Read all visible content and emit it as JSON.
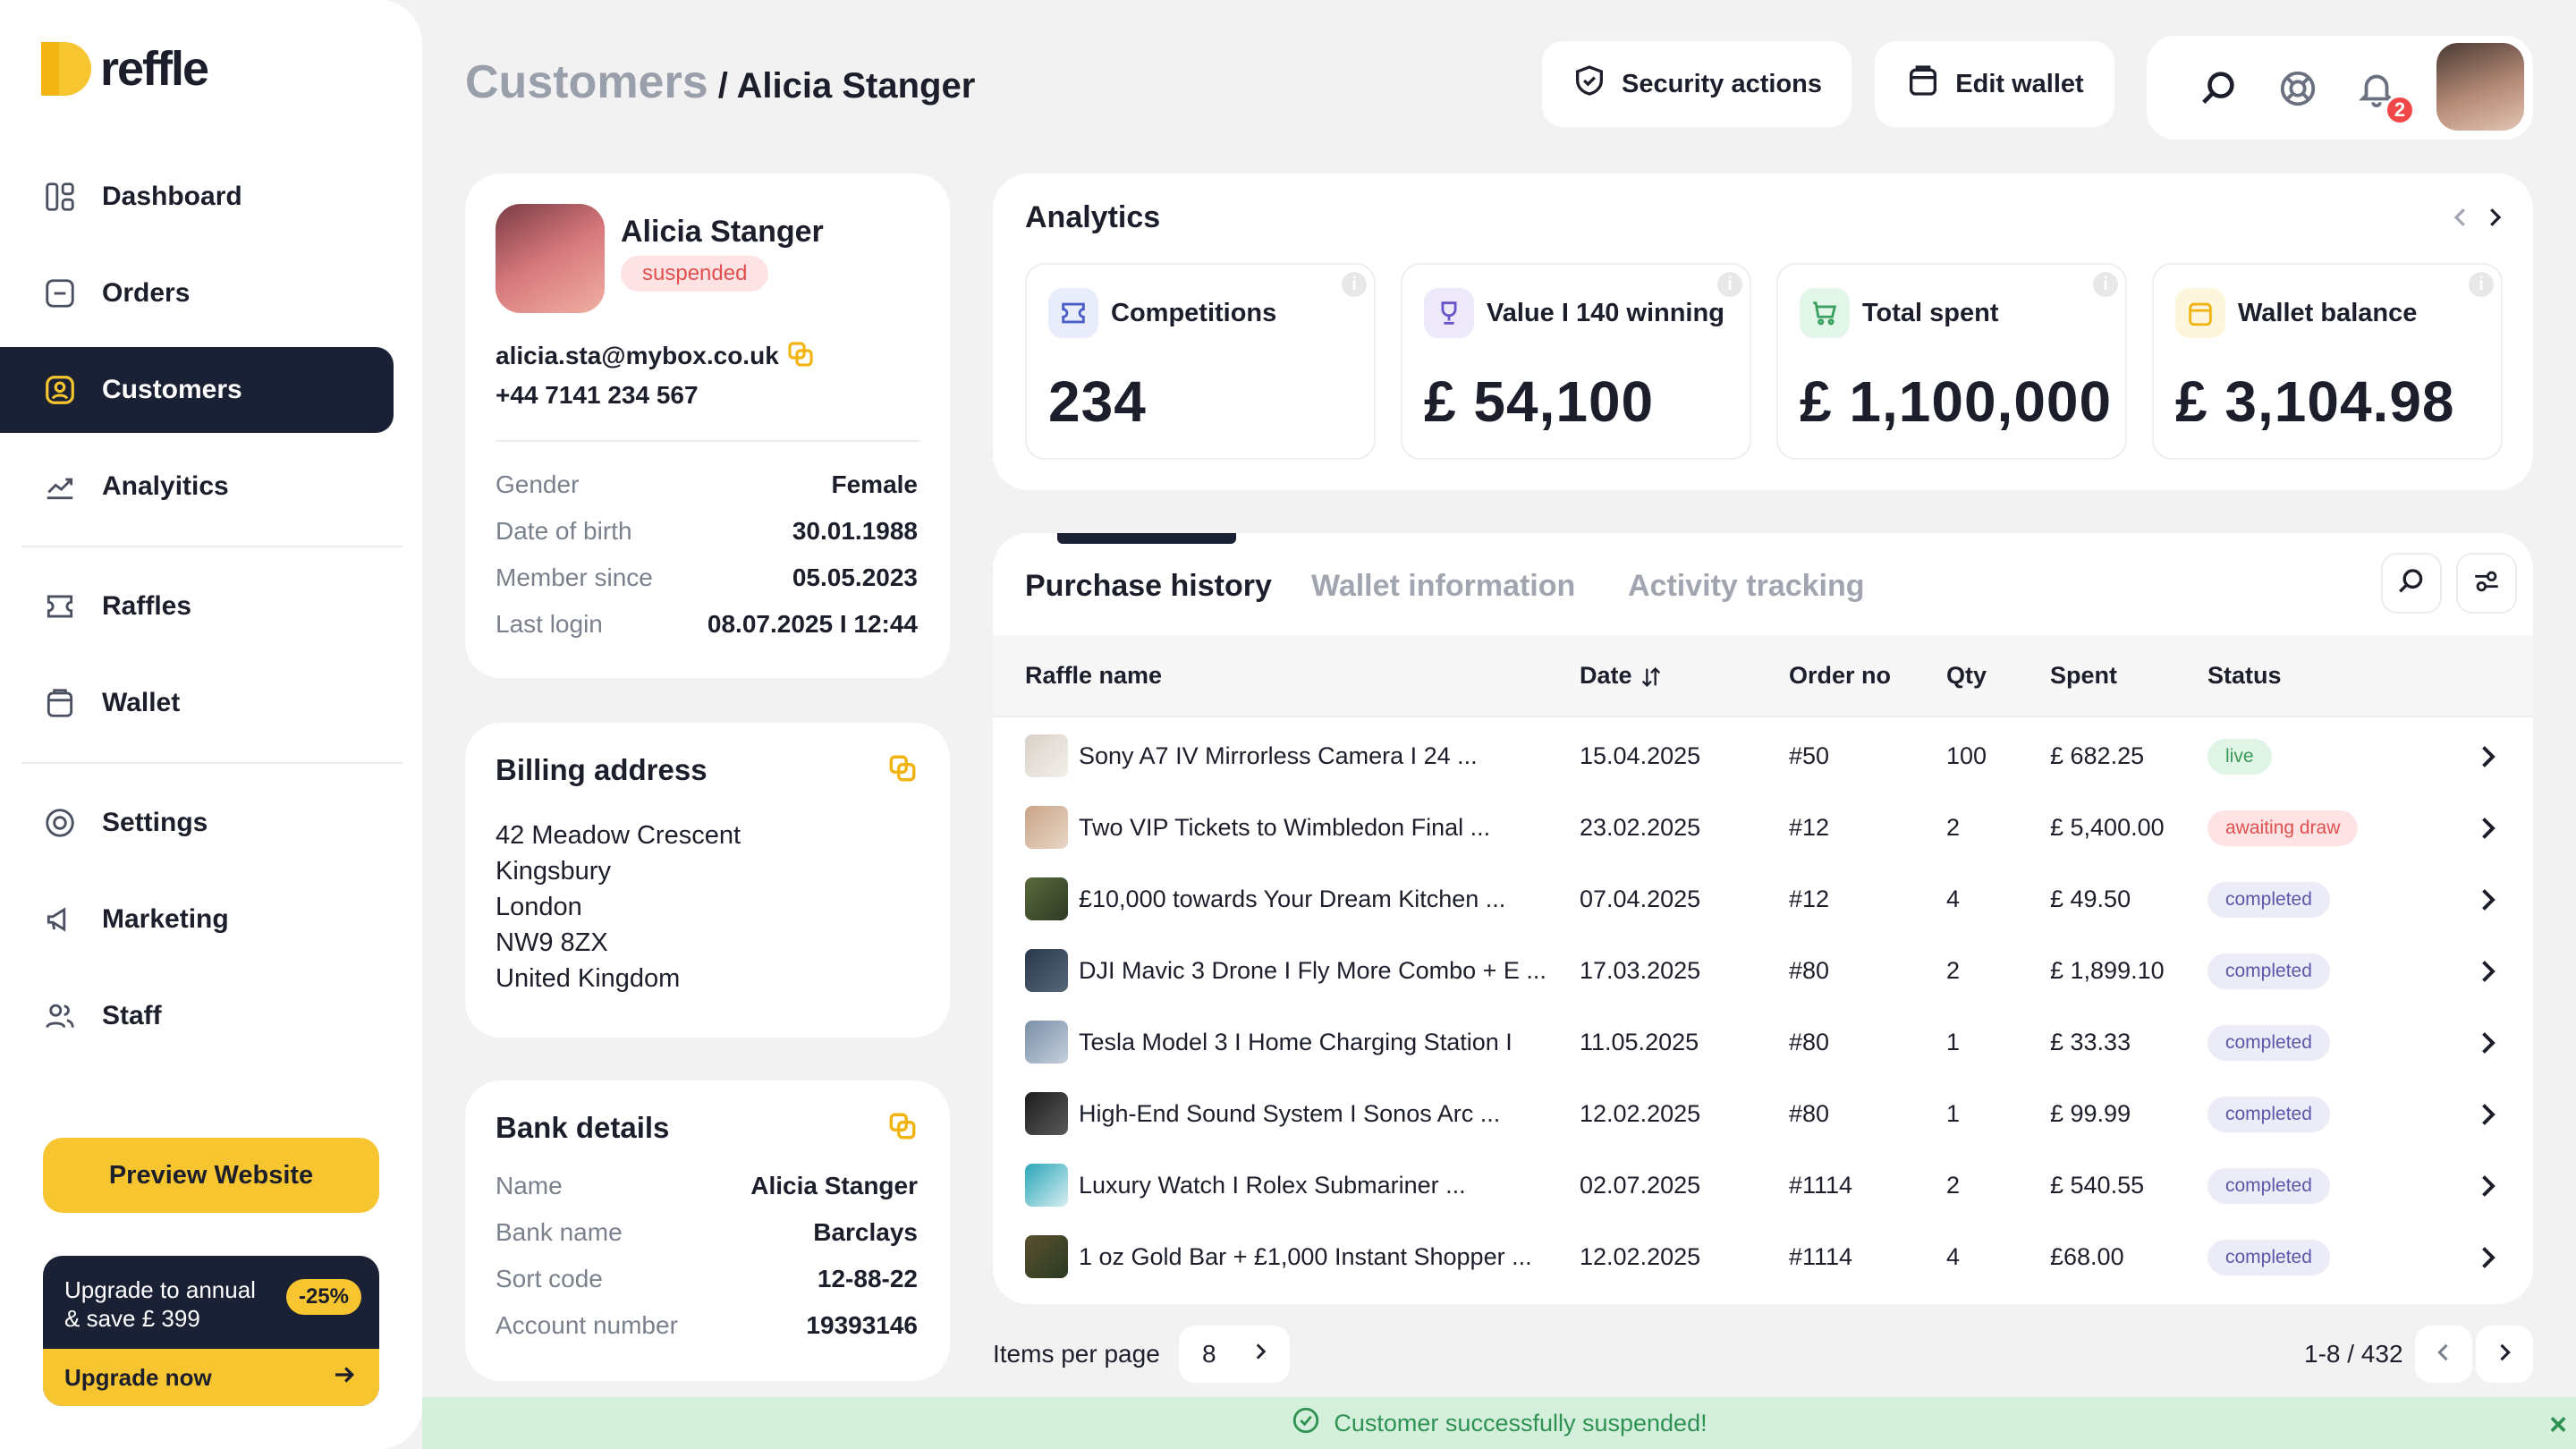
{
  "brand": {
    "name": "reffle"
  },
  "sidebar": {
    "items": [
      {
        "label": "Dashboard"
      },
      {
        "label": "Orders"
      },
      {
        "label": "Customers"
      },
      {
        "label": "Analyitics"
      },
      {
        "label": "Raffles"
      },
      {
        "label": "Wallet"
      },
      {
        "label": "Settings"
      },
      {
        "label": "Marketing"
      },
      {
        "label": "Staff"
      }
    ],
    "preview_label": "Preview Website",
    "upgrade": {
      "line1": "Upgrade to annual",
      "line2": "& save £ 399",
      "badge": "-25%",
      "cta": "Upgrade now"
    }
  },
  "header": {
    "breadcrumb_root": "Customers",
    "breadcrumb_sep": " / ",
    "breadcrumb_current": "Alicia Stanger",
    "security_label": "Security actions",
    "edit_wallet_label": "Edit wallet",
    "notification_count": "2"
  },
  "profile": {
    "name": "Alicia Stanger",
    "status": "suspended",
    "email": "alicia.sta@mybox.co.uk",
    "phone": "+44 7141 234 567",
    "details": [
      {
        "key": "Gender",
        "value": "Female"
      },
      {
        "key": "Date of birth",
        "value": "30.01.1988"
      },
      {
        "key": "Member since",
        "value": "05.05.2023"
      },
      {
        "key": "Last login",
        "value": "08.07.2025 I 12:44"
      }
    ]
  },
  "billing": {
    "title": "Billing address",
    "lines": [
      "42 Meadow Crescent",
      "Kingsbury",
      "London",
      "NW9 8ZX",
      "United Kingdom"
    ]
  },
  "bank": {
    "title": "Bank details",
    "rows": [
      {
        "key": "Name",
        "value": "Alicia Stanger"
      },
      {
        "key": "Bank name",
        "value": "Barclays"
      },
      {
        "key": "Sort code",
        "value": "12-88-22"
      },
      {
        "key": "Account number",
        "value": "19393146"
      }
    ]
  },
  "analytics": {
    "title": "Analytics",
    "stats": [
      {
        "label": "Competitions",
        "value": "234",
        "icon": "ticket-icon",
        "color": "#e9ecfb"
      },
      {
        "label": "Value I 140 winning",
        "value": "£ 54,100",
        "icon": "trophy-icon",
        "color": "#ede9fb"
      },
      {
        "label": "Total spent",
        "value": "£ 1,100,000",
        "icon": "cart-icon",
        "color": "#e3f6ea"
      },
      {
        "label": "Wallet balance",
        "value": "£ 3,104.98",
        "icon": "wallet-icon",
        "color": "#fdf6dc"
      }
    ],
    "info_glyph": "i"
  },
  "purchases": {
    "tabs": [
      "Purchase history",
      "Wallet information",
      "Activity tracking"
    ],
    "columns": [
      "Raffle name",
      "Date",
      "Order no",
      "Qty",
      "Spent",
      "Status"
    ],
    "rows": [
      {
        "name": "Sony A7 IV Mirrorless Camera I 24 ...",
        "date": "15.04.2025",
        "order": "#50",
        "qty": "100",
        "spent": "£ 682.25",
        "status": "live",
        "kind": "live"
      },
      {
        "name": "Two VIP Tickets to Wimbledon Final ...",
        "date": "23.02.2025",
        "order": "#12",
        "qty": "2",
        "spent": "£ 5,400.00",
        "status": "awaiting draw",
        "kind": "await"
      },
      {
        "name": "£10,000 towards Your Dream Kitchen ...",
        "date": "07.04.2025",
        "order": "#12",
        "qty": "4",
        "spent": "£ 49.50",
        "status": "completed",
        "kind": "done"
      },
      {
        "name": "DJI Mavic 3 Drone I Fly More Combo + E ...",
        "date": "17.03.2025",
        "order": "#80",
        "qty": "2",
        "spent": "£ 1,899.10",
        "status": "completed",
        "kind": "done"
      },
      {
        "name": "Tesla Model 3 I Home Charging Station I",
        "date": "11.05.2025",
        "order": "#80",
        "qty": "1",
        "spent": "£ 33.33",
        "status": "completed",
        "kind": "done"
      },
      {
        "name": "High-End Sound System I Sonos Arc  ...",
        "date": "12.02.2025",
        "order": "#80",
        "qty": "1",
        "spent": "£ 99.99",
        "status": "completed",
        "kind": "done"
      },
      {
        "name": "Luxury Watch I Rolex Submariner ...",
        "date": "02.07.2025",
        "order": "#1114",
        "qty": "2",
        "spent": "£ 540.55",
        "status": "completed",
        "kind": "done"
      },
      {
        "name": "1 oz Gold Bar + £1,000 Instant Shopper ...",
        "date": "12.02.2025",
        "order": "#1114",
        "qty": "4",
        "spent": "£68.00",
        "status": "completed",
        "kind": "done"
      }
    ]
  },
  "pagination": {
    "items_per_page_label": "Items per page",
    "items_per_page": "8",
    "range": "1-8 / 432"
  },
  "toast": {
    "message": "Customer successfully suspended!",
    "close": "×"
  }
}
